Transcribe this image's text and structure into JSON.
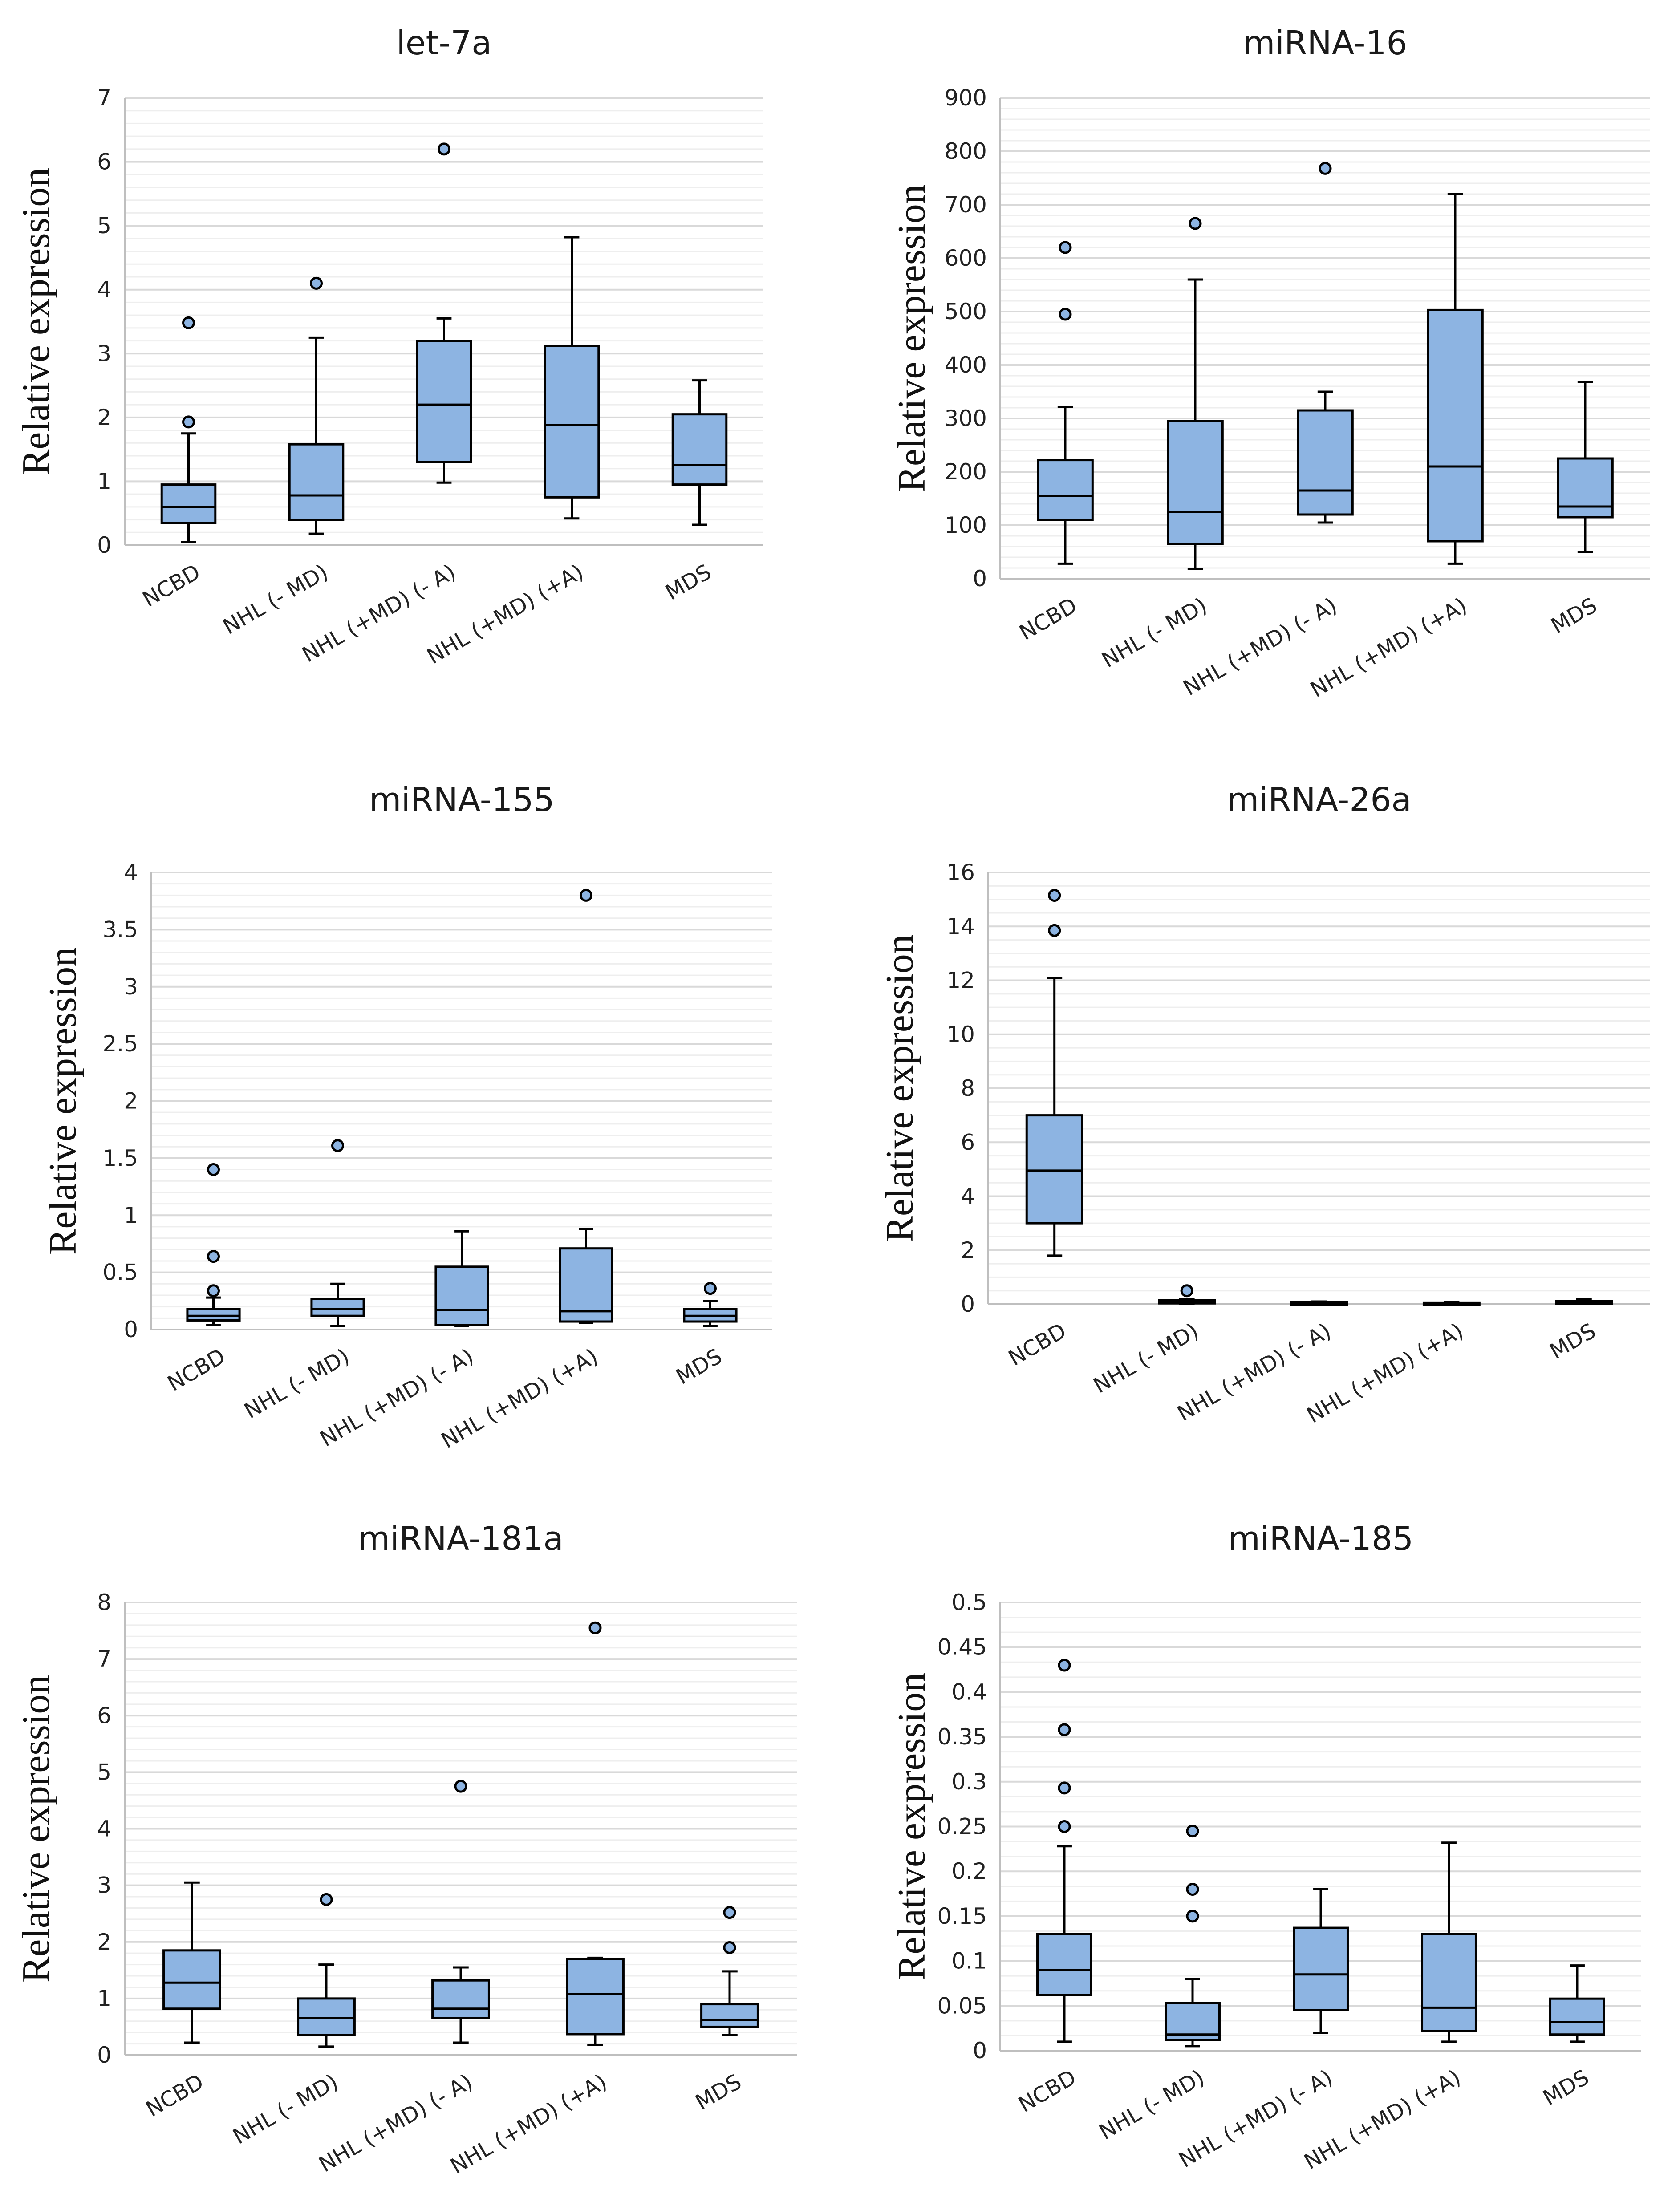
{
  "styles": {
    "box_fill": "#8db4e2",
    "stroke": "#000000",
    "grid_major": "#d9d9d9",
    "grid_minor": "#eeeeee",
    "axis": "#bfbfbf"
  },
  "chart_data": [
    {
      "type": "boxplot",
      "title": "let-7a",
      "ylabel": "Relative expression",
      "ylim": [
        0,
        7
      ],
      "yticks": [
        "0",
        "1",
        "2",
        "3",
        "4",
        "5",
        "6",
        "7"
      ],
      "minor_per_major": 5,
      "categories": [
        "NCBD",
        "NHL (- MD)",
        "NHL  (+MD) (- A)",
        "NHL (+MD) (+A)",
        "MDS"
      ],
      "boxes": [
        {
          "min": 0.05,
          "q1": 0.35,
          "median": 0.6,
          "q3": 0.95,
          "max": 1.75,
          "outliers": [
            1.93,
            3.48
          ]
        },
        {
          "min": 0.18,
          "q1": 0.4,
          "median": 0.78,
          "q3": 1.58,
          "max": 3.25,
          "outliers": [
            4.1
          ]
        },
        {
          "min": 0.98,
          "q1": 1.3,
          "median": 2.2,
          "q3": 3.2,
          "max": 3.55,
          "outliers": [
            6.2
          ]
        },
        {
          "min": 0.42,
          "q1": 0.75,
          "median": 1.88,
          "q3": 3.12,
          "max": 4.82,
          "outliers": []
        },
        {
          "min": 0.32,
          "q1": 0.95,
          "median": 1.25,
          "q3": 2.05,
          "max": 2.58,
          "outliers": []
        }
      ]
    },
    {
      "type": "boxplot",
      "title": "miRNA-16",
      "ylabel": "Relative expression",
      "ylim": [
        0,
        900
      ],
      "yticks": [
        "0",
        "100",
        "200",
        "300",
        "400",
        "500",
        "600",
        "700",
        "800",
        "900"
      ],
      "minor_per_major": 5,
      "categories": [
        "NCBD",
        "NHL (- MD)",
        "NHL  (+MD) (- A)",
        "NHL (+MD) (+A)",
        "MDS"
      ],
      "boxes": [
        {
          "min": 28,
          "q1": 110,
          "median": 155,
          "q3": 222,
          "max": 322,
          "outliers": [
            495,
            620
          ]
        },
        {
          "min": 18,
          "q1": 65,
          "median": 125,
          "q3": 295,
          "max": 560,
          "outliers": [
            665
          ]
        },
        {
          "min": 105,
          "q1": 120,
          "median": 165,
          "q3": 315,
          "max": 350,
          "outliers": [
            768
          ]
        },
        {
          "min": 28,
          "q1": 70,
          "median": 210,
          "q3": 503,
          "max": 720,
          "outliers": []
        },
        {
          "min": 50,
          "q1": 115,
          "median": 135,
          "q3": 225,
          "max": 368,
          "outliers": []
        }
      ]
    },
    {
      "type": "boxplot",
      "title": "miRNA-155",
      "ylabel": "Relative expression",
      "ylim": [
        0,
        4
      ],
      "yticks": [
        "0",
        "0.5",
        "1",
        "1.5",
        "2",
        "2.5",
        "3",
        "3.5",
        "4"
      ],
      "minor_per_major": 5,
      "categories": [
        "NCBD",
        "NHL (- MD)",
        "NHL  (+MD) (- A)",
        "NHL (+MD) (+A)",
        "MDS"
      ],
      "boxes": [
        {
          "min": 0.04,
          "q1": 0.08,
          "median": 0.12,
          "q3": 0.18,
          "max": 0.28,
          "outliers": [
            0.34,
            0.64,
            1.4
          ]
        },
        {
          "min": 0.03,
          "q1": 0.12,
          "median": 0.18,
          "q3": 0.27,
          "max": 0.4,
          "outliers": [
            1.61
          ]
        },
        {
          "min": 0.03,
          "q1": 0.04,
          "median": 0.17,
          "q3": 0.55,
          "max": 0.86,
          "outliers": []
        },
        {
          "min": 0.06,
          "q1": 0.07,
          "median": 0.16,
          "q3": 0.71,
          "max": 0.88,
          "outliers": [
            3.8
          ]
        },
        {
          "min": 0.03,
          "q1": 0.07,
          "median": 0.12,
          "q3": 0.18,
          "max": 0.25,
          "outliers": [
            0.36
          ]
        }
      ]
    },
    {
      "type": "boxplot",
      "title": "miRNA-26a",
      "ylabel": "Relative expression",
      "ylim": [
        0,
        16
      ],
      "yticks": [
        "0",
        "2",
        "4",
        "6",
        "8",
        "10",
        "12",
        "14",
        "16"
      ],
      "minor_per_major": 4,
      "categories": [
        "NCBD",
        "NHL (- MD)",
        "NHL  (+MD) (- A)",
        "NHL (+MD) (+A)",
        "MDS"
      ],
      "boxes": [
        {
          "min": 1.8,
          "q1": 3.0,
          "median": 4.95,
          "q3": 7.0,
          "max": 12.1,
          "outliers": [
            13.85,
            15.15
          ]
        },
        {
          "min": 0.01,
          "q1": 0.03,
          "median": 0.08,
          "q3": 0.15,
          "max": 0.2,
          "outliers": [
            0.5
          ]
        },
        {
          "min": 0.01,
          "q1": 0.03,
          "median": 0.05,
          "q3": 0.08,
          "max": 0.1,
          "outliers": []
        },
        {
          "min": 0.01,
          "q1": 0.02,
          "median": 0.04,
          "q3": 0.06,
          "max": 0.08,
          "outliers": []
        },
        {
          "min": 0.01,
          "q1": 0.03,
          "median": 0.06,
          "q3": 0.12,
          "max": 0.18,
          "outliers": []
        }
      ]
    },
    {
      "type": "boxplot",
      "title": "miRNA-181a",
      "ylabel": "Relative expression",
      "ylim": [
        0,
        8
      ],
      "yticks": [
        "0",
        "1",
        "2",
        "3",
        "4",
        "5",
        "6",
        "7",
        "8"
      ],
      "minor_per_major": 5,
      "categories": [
        "NCBD",
        "NHL (- MD)",
        "NHL  (+MD) (- A)",
        "NHL (+MD) (+A)",
        "MDS"
      ],
      "boxes": [
        {
          "min": 0.22,
          "q1": 0.82,
          "median": 1.28,
          "q3": 1.85,
          "max": 3.05,
          "outliers": []
        },
        {
          "min": 0.15,
          "q1": 0.35,
          "median": 0.65,
          "q3": 1.0,
          "max": 1.6,
          "outliers": [
            2.75
          ]
        },
        {
          "min": 0.22,
          "q1": 0.65,
          "median": 0.82,
          "q3": 1.32,
          "max": 1.55,
          "outliers": [
            4.75
          ]
        },
        {
          "min": 0.18,
          "q1": 0.37,
          "median": 1.08,
          "q3": 1.7,
          "max": 1.72,
          "outliers": [
            7.55
          ]
        },
        {
          "min": 0.35,
          "q1": 0.5,
          "median": 0.62,
          "q3": 0.9,
          "max": 1.48,
          "outliers": [
            1.9,
            2.52
          ]
        }
      ]
    },
    {
      "type": "boxplot",
      "title": "miRNA-185",
      "ylabel": "Relative expression",
      "ylim": [
        0,
        0.5
      ],
      "yticks": [
        "0",
        "0.05",
        "0.1",
        "0.15",
        "0.2",
        "0.25",
        "0.3",
        "0.35",
        "0.4",
        "0.45",
        "0.5"
      ],
      "minor_per_major": 3,
      "categories": [
        "NCBD",
        "NHL (- MD)",
        "NHL  (+MD) (- A)",
        "NHL (+MD) (+A)",
        "MDS"
      ],
      "boxes": [
        {
          "min": 0.01,
          "q1": 0.062,
          "median": 0.09,
          "q3": 0.13,
          "max": 0.228,
          "outliers": [
            0.25,
            0.293,
            0.358,
            0.43
          ]
        },
        {
          "min": 0.005,
          "q1": 0.012,
          "median": 0.018,
          "q3": 0.053,
          "max": 0.08,
          "outliers": [
            0.15,
            0.18,
            0.245
          ]
        },
        {
          "min": 0.02,
          "q1": 0.045,
          "median": 0.085,
          "q3": 0.137,
          "max": 0.18,
          "outliers": []
        },
        {
          "min": 0.01,
          "q1": 0.022,
          "median": 0.048,
          "q3": 0.13,
          "max": 0.232,
          "outliers": []
        },
        {
          "min": 0.01,
          "q1": 0.018,
          "median": 0.032,
          "q3": 0.058,
          "max": 0.095,
          "outliers": []
        }
      ]
    }
  ]
}
